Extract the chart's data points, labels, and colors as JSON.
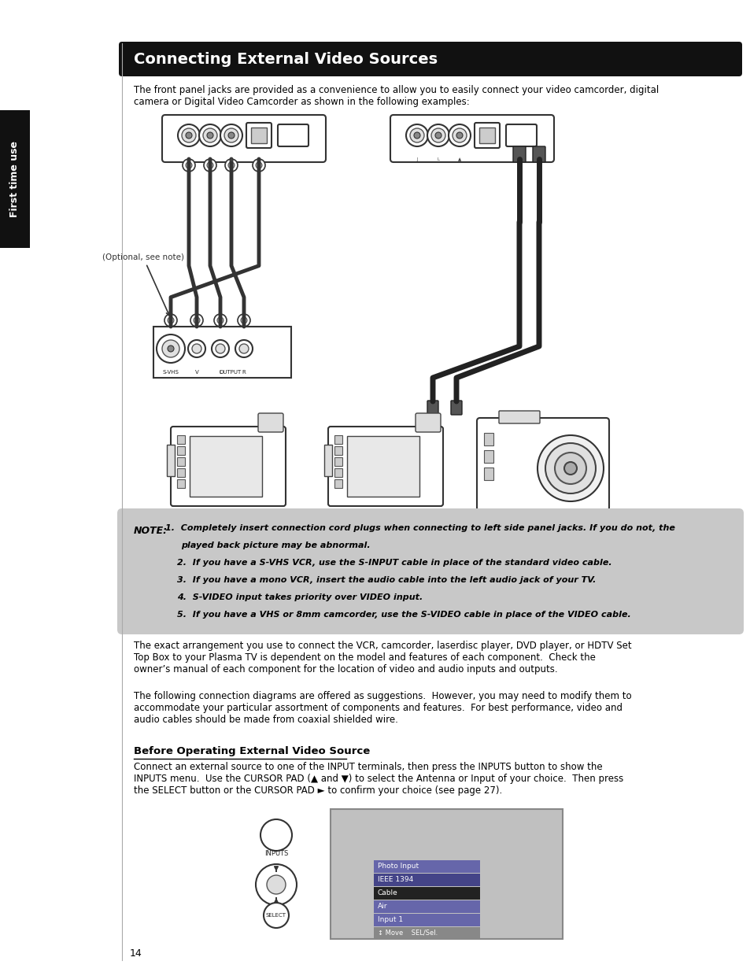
{
  "page_bg": "#ffffff",
  "left_panel_bg": "#111111",
  "left_panel_text": "First time use",
  "header_bg": "#111111",
  "header_text": "Connecting External Video Sources",
  "header_text_color": "#ffffff",
  "header_fontsize": 14,
  "body_text_color": "#000000",
  "note_bg": "#c8c8c8",
  "intro_text": "The front panel jacks are provided as a convenience to allow you to easily connect your video camcorder, digital\ncamera or Digital Video Camcorder as shown in the following examples:",
  "note_label": "NOTE:",
  "note_lines": [
    "1.  Completely insert connection cord plugs when connecting to left side panel jacks. If you do not, the",
    "      played back picture may be abnormal.",
    "2.  If you have a S-VHS VCR, use the S-INPUT cable in place of the standard video cable.",
    "3.  If you have a mono VCR, insert the audio cable into the left audio jack of your TV.",
    "4.  S-VIDEO input takes priority over VIDEO input.",
    "5.  If you have a VHS or 8mm camcorder, use the S-VIDEO cable in place of the VIDEO cable."
  ],
  "body_para1": "The exact arrangement you use to connect the VCR, camcorder, laserdisc player, DVD player, or HDTV Set\nTop Box to your Plasma TV is dependent on the model and features of each component.  Check the\nowner’s manual of each component for the location of video and audio inputs and outputs.",
  "body_para2": "The following connection diagrams are offered as suggestions.  However, you may need to modify them to\naccommodate your particular assortment of components and features.  For best performance, video and\naudio cables should be made from coaxial shielded wire.",
  "section_header": "Before Operating External Video Source",
  "section_body": "Connect an external source to one of the INPUT terminals, then press the INPUTS button to show the\nINPUTS menu.  Use the CURSOR PAD (▲ and ▼) to select the Antenna or Input of your choice.  Then press\nthe SELECT button or the CURSOR PAD ► to confirm your choice (see page 27).",
  "page_number": "14",
  "menu_items": [
    "Photo Input",
    "IEEE 1394",
    "Cable",
    "Air",
    "Input 1"
  ],
  "menu_hint": "↕ Move    SEL/Sel.",
  "optional_text": "(Optional, see note)"
}
